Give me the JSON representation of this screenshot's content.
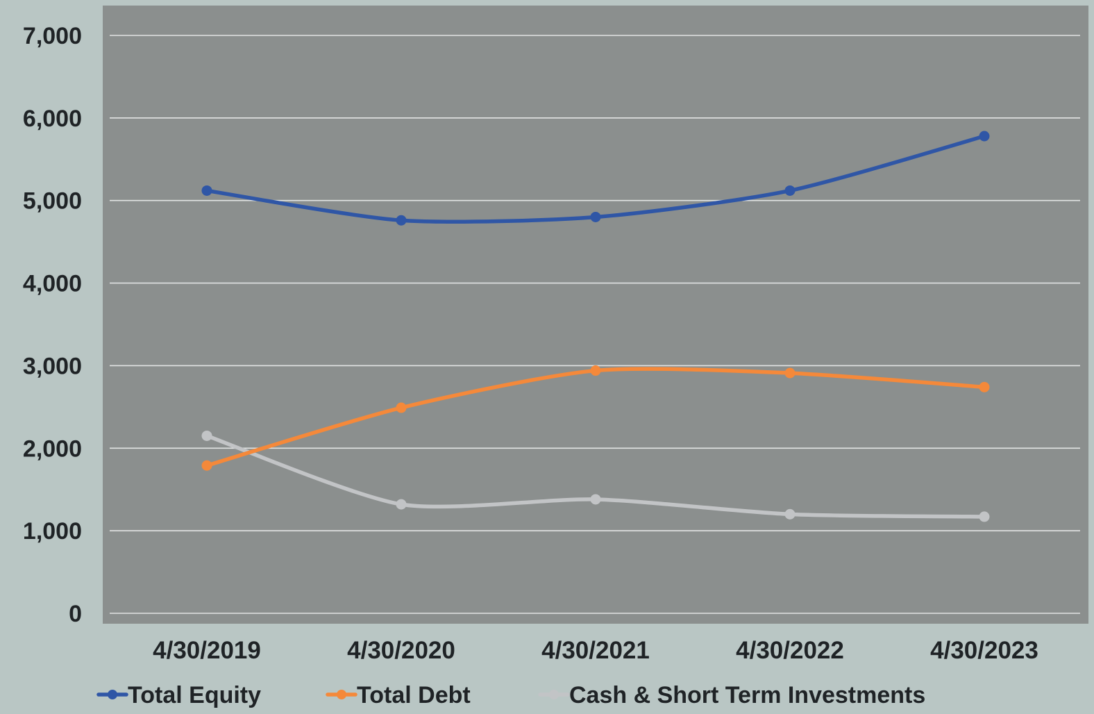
{
  "chart_data": {
    "type": "line",
    "title": "",
    "xlabel": "",
    "ylabel": "",
    "categories": [
      "4/30/2019",
      "4/30/2020",
      "4/30/2021",
      "4/30/2022",
      "4/30/2023"
    ],
    "ylim": [
      0,
      7000
    ],
    "yticks": [
      0,
      1000,
      2000,
      3000,
      4000,
      5000,
      6000,
      7000
    ],
    "ytick_labels": [
      "0",
      "1,000",
      "2,000",
      "3,000",
      "4,000",
      "5,000",
      "6,000",
      "7,000"
    ],
    "grid": true,
    "legend_position": "bottom",
    "series": [
      {
        "name": "Total Equity",
        "color": "#2f56a6",
        "values": [
          5120,
          4760,
          4800,
          5120,
          5780
        ]
      },
      {
        "name": "Total Debt",
        "color": "#f5893a",
        "values": [
          1790,
          2490,
          2940,
          2910,
          2740
        ]
      },
      {
        "name": "Cash & Short Term Investments",
        "color": "#c2c4c6",
        "values": [
          2150,
          1320,
          1380,
          1200,
          1170
        ]
      }
    ]
  },
  "colors": {
    "page_background": "#b9c6c4",
    "plot_background": "#8b8f8e",
    "gridline": "#e2e4e4",
    "text": "#1f2326"
  }
}
